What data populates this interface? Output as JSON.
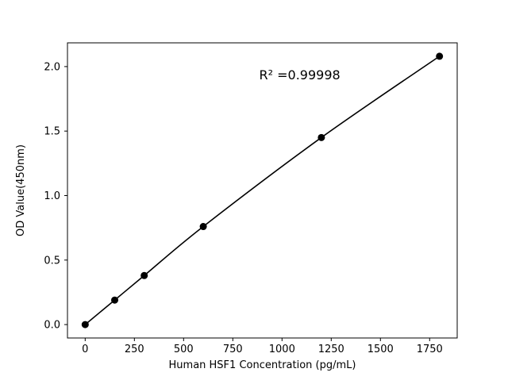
{
  "figure": {
    "background": "#ffffff"
  },
  "chart_data": {
    "type": "line",
    "title": "",
    "xlabel": "Human HSF1 Concentration (pg/mL)",
    "ylabel": "OD Value(450nm)",
    "x": [
      0,
      150,
      300,
      600,
      1200,
      1800
    ],
    "y": [
      0.0,
      0.19,
      0.38,
      0.76,
      1.45,
      2.08
    ],
    "xlim": [
      -90,
      1890
    ],
    "ylim": [
      -0.104,
      2.184
    ],
    "xticks": [
      0,
      250,
      500,
      750,
      1000,
      1250,
      1500,
      1750
    ],
    "yticks": [
      0.0,
      0.5,
      1.0,
      1.5,
      2.0
    ],
    "ytick_labels": [
      "0.0",
      "0.5",
      "1.0",
      "1.5",
      "2.0"
    ],
    "grid": false,
    "legend": null,
    "line_color": "#000000",
    "marker_color": "#000000",
    "annotation": {
      "text": "R² =0.99998",
      "x": 1090,
      "y": 1.9
    }
  }
}
